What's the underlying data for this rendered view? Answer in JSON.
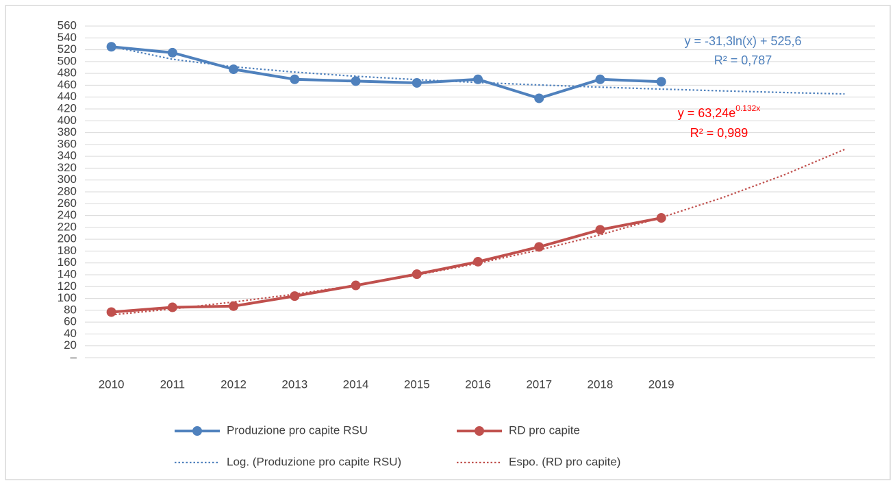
{
  "chart_data": {
    "type": "line",
    "categories": [
      "2010",
      "2011",
      "2012",
      "2013",
      "2014",
      "2015",
      "2016",
      "2017",
      "2018",
      "2019",
      null,
      null,
      null
    ],
    "series": [
      {
        "name": "Produzione pro capite RSU",
        "color": "#4f81bd",
        "style": "solid",
        "markers": true,
        "values": [
          525,
          515,
          487,
          470,
          467,
          464,
          470,
          438,
          470,
          466,
          null,
          null,
          null
        ]
      },
      {
        "name": "RD pro capite",
        "color": "#c0504d",
        "style": "solid",
        "markers": true,
        "values": [
          77,
          85,
          87,
          104,
          122,
          141,
          162,
          187,
          216,
          236,
          null,
          null,
          null
        ]
      },
      {
        "name": "Log. (Produzione pro capite RSU)",
        "color": "#4f81bd",
        "style": "dotted",
        "markers": false,
        "values": [
          525.6,
          503.9,
          491.2,
          482.2,
          475.2,
          469.5,
          464.7,
          460.5,
          456.8,
          453.5,
          450.5,
          447.8,
          445.3
        ]
      },
      {
        "name": "Espo. (RD pro capite)",
        "color": "#c0504d",
        "style": "dotted",
        "markers": false,
        "values": [
          72.2,
          82.3,
          94.0,
          107.2,
          122.3,
          139.6,
          159.3,
          181.8,
          207.4,
          236.7,
          270.1,
          308.2,
          351.7
        ]
      }
    ],
    "ylim": [
      0,
      560
    ],
    "yticks": [
      {
        "value": 0,
        "label": "–"
      },
      20,
      40,
      60,
      80,
      100,
      120,
      140,
      160,
      180,
      200,
      220,
      240,
      260,
      280,
      300,
      320,
      340,
      360,
      380,
      400,
      420,
      440,
      460,
      480,
      500,
      520,
      540,
      560
    ],
    "grid": true,
    "legend": "bottom",
    "annotations": [
      {
        "text": "y = -31,3ln(x) + 525,6",
        "color": "#4f81bd"
      },
      {
        "text": "R² = 0,787",
        "color": "#4f81bd"
      },
      {
        "text": "y = 63,24e",
        "superscript": "0.132x",
        "color": "#ff0000"
      },
      {
        "text": "R² = 0,989",
        "color": "#ff0000"
      }
    ]
  }
}
